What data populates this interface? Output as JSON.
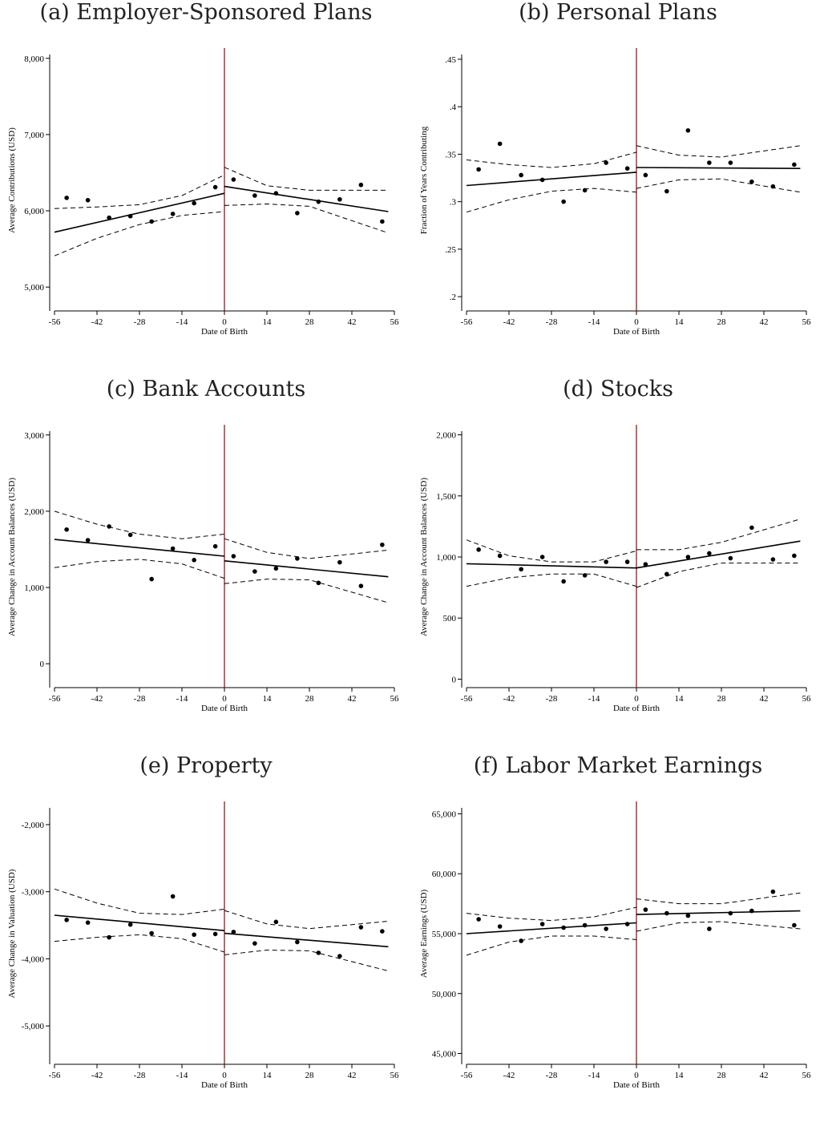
{
  "colors": {
    "cutoff": "#8b1a1a",
    "data": "#000000"
  },
  "xlabel": "Date of Birth",
  "xticks": [
    -56,
    -42,
    -28,
    -14,
    0,
    14,
    28,
    42,
    56
  ],
  "chart_data": [
    {
      "type": "scatter",
      "title": "(a) Employer-Sponsored Plans",
      "xlabel": "Date of Birth",
      "ylabel": "Average Contributions (USD)",
      "xlim": [
        -56,
        56
      ],
      "ylim": [
        4750,
        8050
      ],
      "yticks": [
        5000,
        6000,
        7000,
        8000
      ],
      "ytick_labels": [
        "5,000",
        "6,000",
        "7,000",
        "8,000"
      ],
      "points": [
        [
          -52,
          6170
        ],
        [
          -45,
          6140
        ],
        [
          -38,
          5910
        ],
        [
          -31,
          5930
        ],
        [
          -24,
          5860
        ],
        [
          -17,
          5960
        ],
        [
          -10,
          6100
        ],
        [
          -3,
          6310
        ],
        [
          3,
          6410
        ],
        [
          10,
          6200
        ],
        [
          17,
          6230
        ],
        [
          24,
          5970
        ],
        [
          31,
          6120
        ],
        [
          38,
          6150
        ],
        [
          45,
          6340
        ],
        [
          52,
          5860
        ]
      ],
      "fit_left": [
        [
          -56,
          5720
        ],
        [
          0,
          6230
        ]
      ],
      "fit_right": [
        [
          0,
          6320
        ],
        [
          54,
          5990
        ]
      ],
      "ci_left": {
        "upper": [
          [
            -56,
            6030
          ],
          [
            -42,
            6050
          ],
          [
            -28,
            6080
          ],
          [
            -14,
            6200
          ],
          [
            0,
            6470
          ]
        ],
        "lower": [
          [
            -56,
            5410
          ],
          [
            -42,
            5640
          ],
          [
            -28,
            5820
          ],
          [
            -14,
            5940
          ],
          [
            0,
            5990
          ]
        ]
      },
      "ci_right": {
        "upper": [
          [
            0,
            6570
          ],
          [
            14,
            6330
          ],
          [
            28,
            6270
          ],
          [
            54,
            6270
          ]
        ],
        "lower": [
          [
            0,
            6070
          ],
          [
            14,
            6090
          ],
          [
            28,
            6060
          ],
          [
            54,
            5710
          ]
        ]
      }
    },
    {
      "type": "scatter",
      "title": "(b) Personal Plans",
      "xlabel": "Date of Birth",
      "ylabel": "Fraction of Years Contributing",
      "xlim": [
        -56,
        56
      ],
      "ylim": [
        0.19,
        0.455
      ],
      "yticks": [
        0.2,
        0.25,
        0.3,
        0.35,
        0.4,
        0.45
      ],
      "ytick_labels": [
        ".2",
        ".25",
        ".3",
        ".35",
        ".4",
        ".45"
      ],
      "points": [
        [
          -52,
          0.334
        ],
        [
          -45,
          0.361
        ],
        [
          -38,
          0.328
        ],
        [
          -31,
          0.323
        ],
        [
          -24,
          0.3
        ],
        [
          -17,
          0.312
        ],
        [
          -10,
          0.341
        ],
        [
          -3,
          0.335
        ],
        [
          3,
          0.328
        ],
        [
          10,
          0.311
        ],
        [
          17,
          0.375
        ],
        [
          24,
          0.341
        ],
        [
          31,
          0.341
        ],
        [
          38,
          0.321
        ],
        [
          45,
          0.316
        ],
        [
          52,
          0.339
        ]
      ],
      "fit_left": [
        [
          -56,
          0.317
        ],
        [
          0,
          0.331
        ]
      ],
      "fit_right": [
        [
          0,
          0.336
        ],
        [
          54,
          0.335
        ]
      ],
      "ci_left": {
        "upper": [
          [
            -56,
            0.344
          ],
          [
            -42,
            0.339
          ],
          [
            -28,
            0.336
          ],
          [
            -14,
            0.34
          ],
          [
            0,
            0.352
          ]
        ],
        "lower": [
          [
            -56,
            0.289
          ],
          [
            -42,
            0.302
          ],
          [
            -28,
            0.311
          ],
          [
            -14,
            0.314
          ],
          [
            0,
            0.31
          ]
        ]
      },
      "ci_right": {
        "upper": [
          [
            0,
            0.359
          ],
          [
            14,
            0.349
          ],
          [
            28,
            0.347
          ],
          [
            54,
            0.359
          ]
        ],
        "lower": [
          [
            0,
            0.314
          ],
          [
            14,
            0.323
          ],
          [
            28,
            0.324
          ],
          [
            54,
            0.31
          ]
        ]
      }
    },
    {
      "type": "scatter",
      "title": "(c) Bank Accounts",
      "xlabel": "Date of Birth",
      "ylabel": "Average Change in Account Balances (USD)",
      "xlim": [
        -56,
        56
      ],
      "ylim": [
        -250,
        3050
      ],
      "yticks": [
        0,
        1000,
        2000,
        3000
      ],
      "ytick_labels": [
        "0",
        "1,000",
        "2,000",
        "3,000"
      ],
      "points": [
        [
          -52,
          1760
        ],
        [
          -45,
          1620
        ],
        [
          -38,
          1800
        ],
        [
          -31,
          1690
        ],
        [
          -24,
          1110
        ],
        [
          -17,
          1510
        ],
        [
          -10,
          1360
        ],
        [
          -3,
          1540
        ],
        [
          3,
          1410
        ],
        [
          10,
          1210
        ],
        [
          17,
          1250
        ],
        [
          24,
          1380
        ],
        [
          31,
          1060
        ],
        [
          38,
          1330
        ],
        [
          45,
          1020
        ],
        [
          52,
          1560
        ]
      ],
      "fit_left": [
        [
          -56,
          1630
        ],
        [
          0,
          1410
        ]
      ],
      "fit_right": [
        [
          0,
          1350
        ],
        [
          54,
          1140
        ]
      ],
      "ci_left": {
        "upper": [
          [
            -56,
            2000
          ],
          [
            -42,
            1830
          ],
          [
            -28,
            1700
          ],
          [
            -14,
            1640
          ],
          [
            0,
            1700
          ]
        ],
        "lower": [
          [
            -56,
            1260
          ],
          [
            -42,
            1340
          ],
          [
            -28,
            1370
          ],
          [
            -14,
            1310
          ],
          [
            0,
            1120
          ]
        ]
      },
      "ci_right": {
        "upper": [
          [
            0,
            1640
          ],
          [
            14,
            1460
          ],
          [
            28,
            1380
          ],
          [
            54,
            1490
          ]
        ],
        "lower": [
          [
            0,
            1050
          ],
          [
            14,
            1110
          ],
          [
            28,
            1100
          ],
          [
            54,
            800
          ]
        ]
      }
    },
    {
      "type": "scatter",
      "title": "(d) Stocks",
      "xlabel": "Date of Birth",
      "ylabel": "Average Change in Account Balances (USD)",
      "xlim": [
        -56,
        56
      ],
      "ylim": [
        -30,
        2030
      ],
      "yticks": [
        0,
        500,
        1000,
        1500,
        2000
      ],
      "ytick_labels": [
        "0",
        "500",
        "1,000",
        "1,500",
        "2,000"
      ],
      "points": [
        [
          -52,
          1060
        ],
        [
          -45,
          1010
        ],
        [
          -38,
          900
        ],
        [
          -31,
          1000
        ],
        [
          -24,
          800
        ],
        [
          -17,
          850
        ],
        [
          -10,
          960
        ],
        [
          -3,
          960
        ],
        [
          3,
          940
        ],
        [
          10,
          860
        ],
        [
          17,
          1000
        ],
        [
          24,
          1030
        ],
        [
          31,
          990
        ],
        [
          38,
          1240
        ],
        [
          45,
          980
        ],
        [
          52,
          1010
        ]
      ],
      "fit_left": [
        [
          -56,
          945
        ],
        [
          0,
          910
        ]
      ],
      "fit_right": [
        [
          0,
          910
        ],
        [
          54,
          1130
        ]
      ],
      "ci_left": {
        "upper": [
          [
            -56,
            1140
          ],
          [
            -42,
            1010
          ],
          [
            -28,
            960
          ],
          [
            -14,
            960
          ],
          [
            0,
            1050
          ]
        ],
        "lower": [
          [
            -56,
            760
          ],
          [
            -42,
            830
          ],
          [
            -28,
            860
          ],
          [
            -14,
            860
          ],
          [
            0,
            760
          ]
        ]
      },
      "ci_right": {
        "upper": [
          [
            0,
            1060
          ],
          [
            14,
            1060
          ],
          [
            28,
            1120
          ],
          [
            54,
            1310
          ]
        ],
        "lower": [
          [
            0,
            750
          ],
          [
            14,
            880
          ],
          [
            28,
            950
          ],
          [
            54,
            950
          ]
        ]
      }
    },
    {
      "type": "scatter",
      "title": "(e) Property",
      "xlabel": "Date of Birth",
      "ylabel": "Average Change in Valuation (USD)",
      "xlim": [
        -56,
        56
      ],
      "ylim": [
        -5500,
        -1750
      ],
      "yticks": [
        -5000,
        -4000,
        -3000,
        -2000
      ],
      "ytick_labels": [
        "-5,000",
        "-4,000",
        "-3,000",
        "-2,000"
      ],
      "points": [
        [
          -52,
          -3420
        ],
        [
          -45,
          -3460
        ],
        [
          -38,
          -3680
        ],
        [
          -31,
          -3490
        ],
        [
          -24,
          -3620
        ],
        [
          -17,
          -3070
        ],
        [
          -10,
          -3640
        ],
        [
          -3,
          -3630
        ],
        [
          3,
          -3600
        ],
        [
          10,
          -3770
        ],
        [
          17,
          -3450
        ],
        [
          24,
          -3750
        ],
        [
          31,
          -3910
        ],
        [
          38,
          -3960
        ],
        [
          45,
          -3530
        ],
        [
          52,
          -3590
        ]
      ],
      "fit_left": [
        [
          -56,
          -3350
        ],
        [
          0,
          -3580
        ]
      ],
      "fit_right": [
        [
          0,
          -3620
        ],
        [
          54,
          -3820
        ]
      ],
      "ci_left": {
        "upper": [
          [
            -56,
            -2960
          ],
          [
            -42,
            -3170
          ],
          [
            -28,
            -3320
          ],
          [
            -14,
            -3340
          ],
          [
            0,
            -3260
          ]
        ],
        "lower": [
          [
            -56,
            -3740
          ],
          [
            -42,
            -3680
          ],
          [
            -28,
            -3640
          ],
          [
            -14,
            -3700
          ],
          [
            0,
            -3900
          ]
        ]
      },
      "ci_right": {
        "upper": [
          [
            0,
            -3280
          ],
          [
            14,
            -3480
          ],
          [
            28,
            -3550
          ],
          [
            54,
            -3440
          ]
        ],
        "lower": [
          [
            0,
            -3940
          ],
          [
            14,
            -3870
          ],
          [
            28,
            -3880
          ],
          [
            54,
            -4180
          ]
        ]
      }
    },
    {
      "type": "scatter",
      "title": "(f) Labor Market Earnings",
      "xlabel": "Date of Birth",
      "ylabel": "Average Earnings (USD)",
      "xlim": [
        -56,
        56
      ],
      "ylim": [
        44500,
        65500
      ],
      "yticks": [
        45000,
        50000,
        55000,
        60000,
        65000
      ],
      "ytick_labels": [
        "45,000",
        "50,000",
        "55,000",
        "60,000",
        "65,000"
      ],
      "points": [
        [
          -52,
          56200
        ],
        [
          -45,
          55600
        ],
        [
          -38,
          54400
        ],
        [
          -31,
          55800
        ],
        [
          -24,
          55500
        ],
        [
          -17,
          55700
        ],
        [
          -10,
          55400
        ],
        [
          -3,
          55800
        ],
        [
          3,
          57000
        ],
        [
          10,
          56700
        ],
        [
          17,
          56500
        ],
        [
          24,
          55400
        ],
        [
          31,
          56700
        ],
        [
          38,
          56900
        ],
        [
          45,
          58500
        ],
        [
          52,
          55700
        ]
      ],
      "fit_left": [
        [
          -56,
          55000
        ],
        [
          0,
          55900
        ]
      ],
      "fit_right": [
        [
          0,
          56600
        ],
        [
          54,
          56900
        ]
      ],
      "ci_left": {
        "upper": [
          [
            -56,
            56700
          ],
          [
            -42,
            56300
          ],
          [
            -28,
            56100
          ],
          [
            -14,
            56400
          ],
          [
            0,
            57200
          ]
        ],
        "lower": [
          [
            -56,
            53200
          ],
          [
            -42,
            54300
          ],
          [
            -28,
            54800
          ],
          [
            -14,
            54800
          ],
          [
            0,
            54500
          ]
        ]
      },
      "ci_right": {
        "upper": [
          [
            0,
            57900
          ],
          [
            14,
            57500
          ],
          [
            28,
            57500
          ],
          [
            54,
            58400
          ]
        ],
        "lower": [
          [
            0,
            55200
          ],
          [
            14,
            55900
          ],
          [
            28,
            56000
          ],
          [
            54,
            55400
          ]
        ]
      }
    }
  ]
}
